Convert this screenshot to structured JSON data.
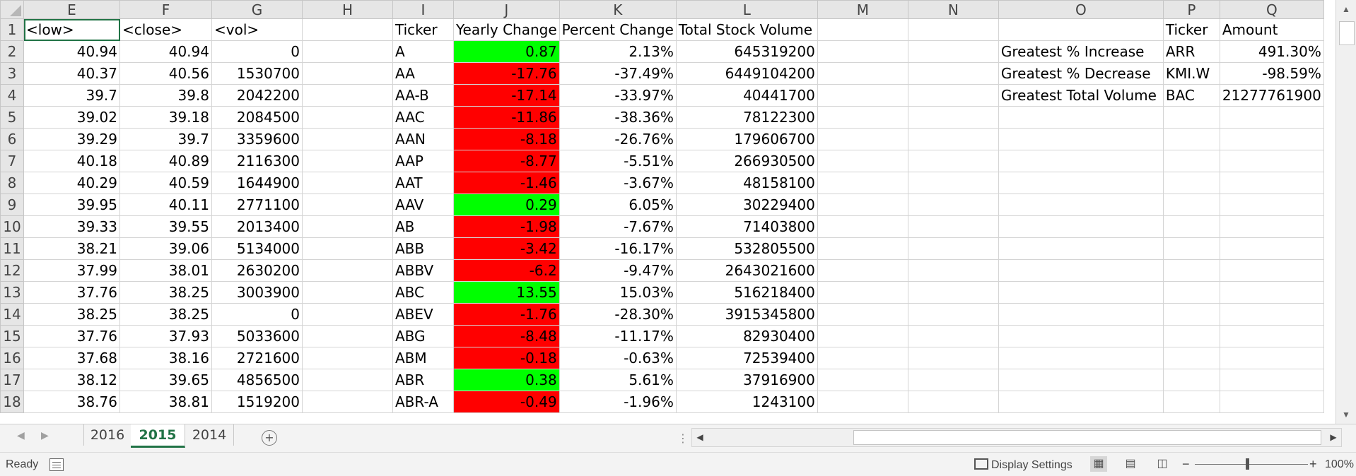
{
  "columns": [
    "E",
    "F",
    "G",
    "H",
    "I",
    "J",
    "K",
    "L",
    "M",
    "N",
    "O",
    "P",
    "Q"
  ],
  "header_row": {
    "num": "1",
    "E": "<low>",
    "F": "<close>",
    "G": "<vol>",
    "I": "Ticker",
    "J": "Yearly Change",
    "K": "Percent Change",
    "L": "Total Stock Volume",
    "P": "Ticker",
    "Q": "Amount"
  },
  "rows": [
    {
      "num": "2",
      "E": "40.94",
      "F": "40.94",
      "G": "0",
      "I": "A",
      "J": "0.87",
      "K": "2.13%",
      "L": "645319200",
      "O": "Greatest % Increase",
      "P": "ARR",
      "Q": "491.30%"
    },
    {
      "num": "3",
      "E": "40.37",
      "F": "40.56",
      "G": "1530700",
      "I": "AA",
      "J": "-17.76",
      "K": "-37.49%",
      "L": "6449104200",
      "O": "Greatest % Decrease",
      "P": "KMI.W",
      "Q": "-98.59%"
    },
    {
      "num": "4",
      "E": "39.7",
      "F": "39.8",
      "G": "2042200",
      "I": "AA-B",
      "J": "-17.14",
      "K": "-33.97%",
      "L": "40441700",
      "O": "Greatest Total Volume",
      "P": "BAC",
      "Q": "21277761900"
    },
    {
      "num": "5",
      "E": "39.02",
      "F": "39.18",
      "G": "2084500",
      "I": "AAC",
      "J": "-11.86",
      "K": "-38.36%",
      "L": "78122300"
    },
    {
      "num": "6",
      "E": "39.29",
      "F": "39.7",
      "G": "3359600",
      "I": "AAN",
      "J": "-8.18",
      "K": "-26.76%",
      "L": "179606700"
    },
    {
      "num": "7",
      "E": "40.18",
      "F": "40.89",
      "G": "2116300",
      "I": "AAP",
      "J": "-8.77",
      "K": "-5.51%",
      "L": "266930500"
    },
    {
      "num": "8",
      "E": "40.29",
      "F": "40.59",
      "G": "1644900",
      "I": "AAT",
      "J": "-1.46",
      "K": "-3.67%",
      "L": "48158100"
    },
    {
      "num": "9",
      "E": "39.95",
      "F": "40.11",
      "G": "2771100",
      "I": "AAV",
      "J": "0.29",
      "K": "6.05%",
      "L": "30229400"
    },
    {
      "num": "10",
      "E": "39.33",
      "F": "39.55",
      "G": "2013400",
      "I": "AB",
      "J": "-1.98",
      "K": "-7.67%",
      "L": "71403800"
    },
    {
      "num": "11",
      "E": "38.21",
      "F": "39.06",
      "G": "5134000",
      "I": "ABB",
      "J": "-3.42",
      "K": "-16.17%",
      "L": "532805500"
    },
    {
      "num": "12",
      "E": "37.99",
      "F": "38.01",
      "G": "2630200",
      "I": "ABBV",
      "J": "-6.2",
      "K": "-9.47%",
      "L": "2643021600"
    },
    {
      "num": "13",
      "E": "37.76",
      "F": "38.25",
      "G": "3003900",
      "I": "ABC",
      "J": "13.55",
      "K": "15.03%",
      "L": "516218400"
    },
    {
      "num": "14",
      "E": "38.25",
      "F": "38.25",
      "G": "0",
      "I": "ABEV",
      "J": "-1.76",
      "K": "-28.30%",
      "L": "3915345800"
    },
    {
      "num": "15",
      "E": "37.76",
      "F": "37.93",
      "G": "5033600",
      "I": "ABG",
      "J": "-8.48",
      "K": "-11.17%",
      "L": "82930400"
    },
    {
      "num": "16",
      "E": "37.68",
      "F": "38.16",
      "G": "2721600",
      "I": "ABM",
      "J": "-0.18",
      "K": "-0.63%",
      "L": "72539400"
    },
    {
      "num": "17",
      "E": "38.12",
      "F": "39.65",
      "G": "4856500",
      "I": "ABR",
      "J": "0.38",
      "K": "5.61%",
      "L": "37916900"
    },
    {
      "num": "18",
      "E": "38.76",
      "F": "38.81",
      "G": "1519200",
      "I": "ABR-A",
      "J": "-0.49",
      "K": "-1.96%",
      "L": "1243100"
    }
  ],
  "positive_color": "#00ff00",
  "negative_color": "#ff0000",
  "sheet_tabs": [
    "2016",
    "2015",
    "2014"
  ],
  "active_tab": "2015",
  "icons": {
    "nav_prev": "triangle-left-icon",
    "nav_next": "triangle-right-icon",
    "add_sheet": "plus-circle-icon"
  },
  "status": {
    "ready": "Ready",
    "display_settings": "Display Settings",
    "zoom": "100%"
  }
}
